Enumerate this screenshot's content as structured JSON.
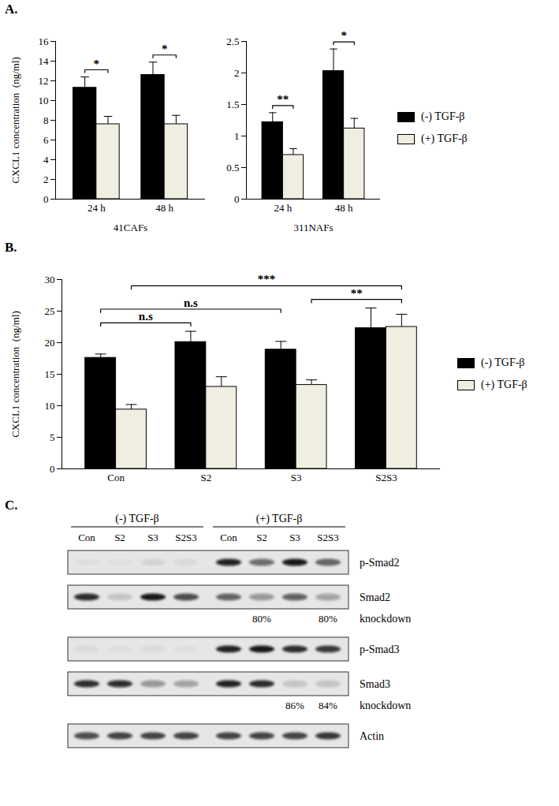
{
  "chart_data": [
    {
      "type": "bar",
      "title": "A.",
      "x_label": "41CAFs",
      "y_label": "CXCL1 concentration  (ng/ml)",
      "categories": [
        "24 h",
        "48 h"
      ],
      "series": [
        {
          "name": "(-) TGF-β",
          "color": "#000000",
          "values": [
            11.3,
            12.6
          ],
          "errors": [
            1.1,
            1.3
          ]
        },
        {
          "name": "(+) TGF-β",
          "color": "#efeee0",
          "values": [
            7.6,
            7.6
          ],
          "errors": [
            0.8,
            0.9
          ]
        }
      ],
      "ylim": [
        0,
        16
      ],
      "yticks": [
        0,
        2,
        4,
        6,
        8,
        10,
        12,
        14,
        16
      ],
      "significance": [
        {
          "from": {
            "category": "24 h",
            "series": "(-) TGF-β"
          },
          "to": {
            "category": "24 h",
            "series": "(+) TGF-β"
          },
          "label": "*"
        },
        {
          "from": {
            "category": "48 h",
            "series": "(-) TGF-β"
          },
          "to": {
            "category": "48 h",
            "series": "(+) TGF-β"
          },
          "label": "*"
        }
      ]
    },
    {
      "type": "bar",
      "x_label": "311NAFs",
      "categories": [
        "24 h",
        "48 h"
      ],
      "series": [
        {
          "name": "(-) TGF-β",
          "color": "#000000",
          "values": [
            1.22,
            2.03
          ],
          "errors": [
            0.15,
            0.35
          ]
        },
        {
          "name": "(+) TGF-β",
          "color": "#efeee0",
          "values": [
            0.7,
            1.12
          ],
          "errors": [
            0.1,
            0.16
          ]
        }
      ],
      "ylim": [
        0,
        2.5
      ],
      "yticks": [
        0,
        0.5,
        1,
        1.5,
        2,
        2.5
      ],
      "legend": "right",
      "significance": [
        {
          "from": {
            "category": "24 h",
            "series": "(-) TGF-β"
          },
          "to": {
            "category": "24 h",
            "series": "(+) TGF-β"
          },
          "label": "**"
        },
        {
          "from": {
            "category": "48 h",
            "series": "(-) TGF-β"
          },
          "to": {
            "category": "48 h",
            "series": "(+) TGF-β"
          },
          "label": "*"
        }
      ]
    },
    {
      "type": "bar",
      "title": "B.",
      "y_label": "CXCL1 concentration  (ng/ml)",
      "categories": [
        "Con",
        "S2",
        "S3",
        "S2S3"
      ],
      "series": [
        {
          "name": "(-) TGF-β",
          "color": "#000000",
          "values": [
            17.6,
            20.1,
            18.9,
            22.3
          ],
          "errors": [
            0.6,
            1.7,
            1.3,
            3.2
          ]
        },
        {
          "name": "(+) TGF-β",
          "color": "#efeee0",
          "values": [
            9.4,
            13.0,
            13.3,
            22.5
          ],
          "errors": [
            0.8,
            1.6,
            0.8,
            2.0
          ]
        }
      ],
      "ylim": [
        0,
        30
      ],
      "yticks": [
        0,
        5,
        10,
        15,
        20,
        25,
        30
      ],
      "legend": "right",
      "significance": [
        {
          "from": {
            "category": "Con",
            "series": "(-) TGF-β"
          },
          "to": {
            "category": "S2",
            "series": "(-) TGF-β"
          },
          "label": "n.s"
        },
        {
          "from": {
            "category": "Con",
            "series": "(-) TGF-β"
          },
          "to": {
            "category": "S3",
            "series": "(-) TGF-β"
          },
          "label": "n.s"
        },
        {
          "from": {
            "category": "Con",
            "series": "(+) TGF-β"
          },
          "to": {
            "category": "S2S3",
            "series": "(+) TGF-β"
          },
          "label": "***"
        },
        {
          "from": {
            "category": "S3",
            "series": "(+) TGF-β"
          },
          "to": {
            "category": "S2S3",
            "series": "(+) TGF-β"
          },
          "label": "**"
        }
      ]
    }
  ],
  "blot": {
    "title": "C.",
    "groups": [
      {
        "label": "(-) TGF-β",
        "lanes": [
          "Con",
          "S2",
          "S3",
          "S2S3"
        ]
      },
      {
        "label": "(+) TGF-β",
        "lanes": [
          "Con",
          "S2",
          "S3",
          "S2S3"
        ]
      }
    ],
    "rows": [
      {
        "label": "p-Smad2",
        "bands": [
          0.03,
          0.02,
          0.08,
          0.05,
          0.9,
          0.55,
          0.95,
          0.6
        ]
      },
      {
        "label": "Smad2",
        "bands": [
          0.85,
          0.15,
          0.95,
          0.7,
          0.6,
          0.35,
          0.6,
          0.3
        ],
        "notes": [
          null,
          null,
          null,
          null,
          null,
          "80%",
          null,
          "80%"
        ],
        "note_label": "knockdown"
      },
      {
        "label": "p-Smad3",
        "bands": [
          0.05,
          0.03,
          0.05,
          0.03,
          0.9,
          0.95,
          0.85,
          0.8
        ]
      },
      {
        "label": "Smad3",
        "bands": [
          0.85,
          0.85,
          0.35,
          0.3,
          0.9,
          0.85,
          0.15,
          0.15
        ],
        "notes": [
          null,
          null,
          null,
          null,
          null,
          null,
          "86%",
          "84%"
        ],
        "note_label": "knockdown"
      },
      {
        "label": "Actin",
        "bands": [
          0.7,
          0.75,
          0.75,
          0.75,
          0.75,
          0.75,
          0.75,
          0.8
        ]
      }
    ]
  }
}
